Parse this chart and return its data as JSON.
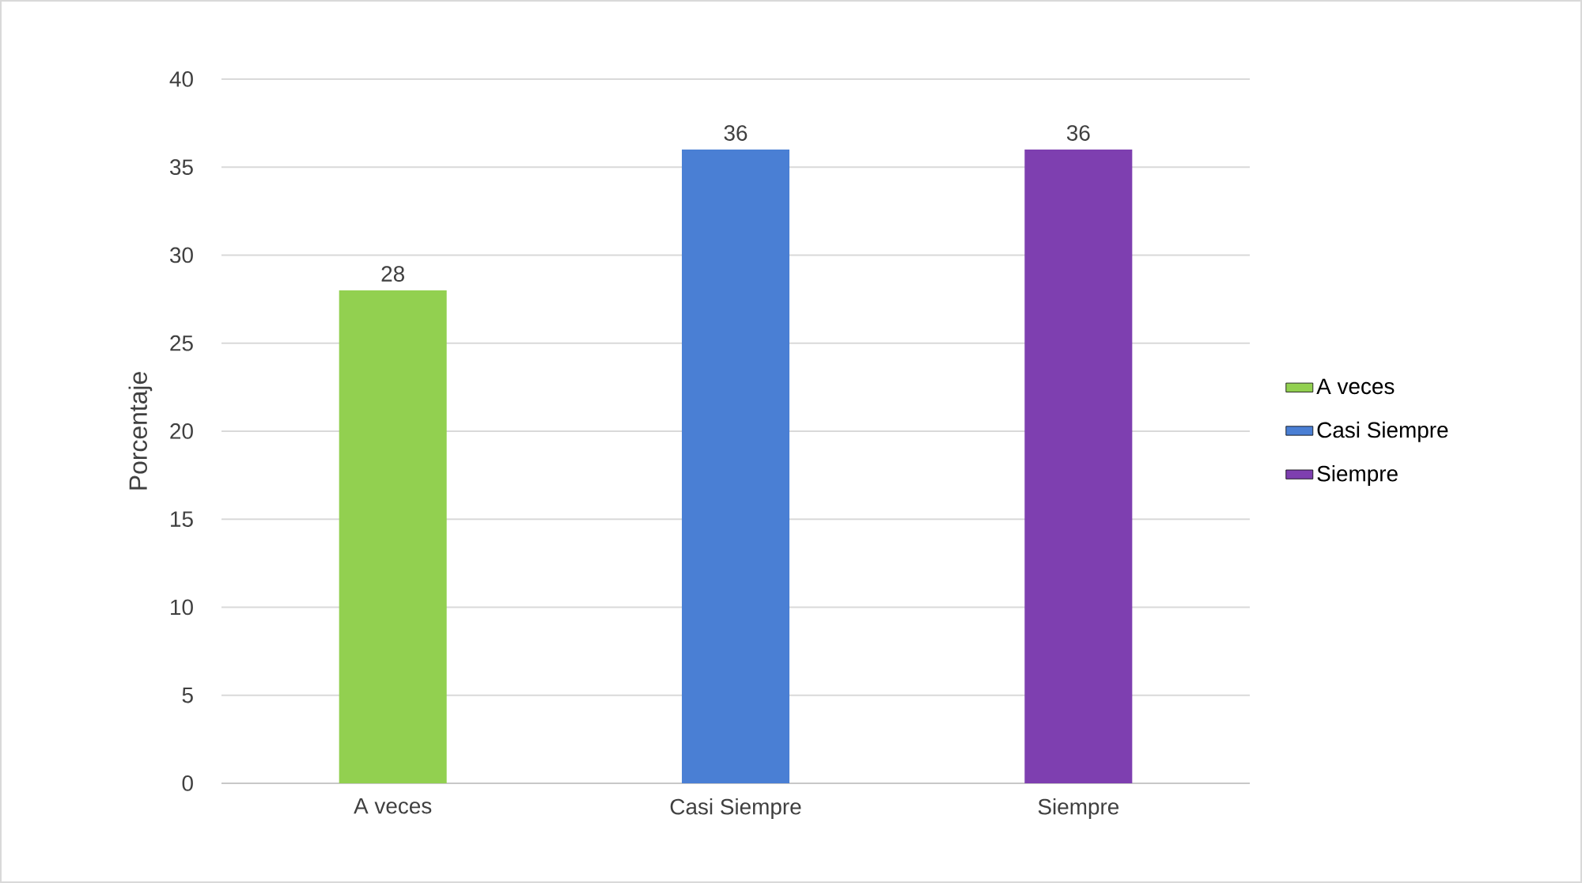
{
  "chart_data": {
    "type": "bar",
    "ylabel": "Porcentaje",
    "categories": [
      "A veces",
      "Casi Siempre",
      "Siempre"
    ],
    "series": [
      {
        "name": "A veces",
        "color": "#92d050",
        "values": [
          28,
          null,
          null
        ]
      },
      {
        "name": "Casi Siempre",
        "color": "#4a7fd4",
        "values": [
          null,
          36,
          null
        ]
      },
      {
        "name": "Siempre",
        "color": "#7e3fb0",
        "values": [
          null,
          null,
          36
        ]
      }
    ],
    "ylim": [
      0,
      40
    ],
    "yticks": [
      0,
      5,
      10,
      15,
      20,
      25,
      30,
      35,
      40
    ],
    "grid": "y",
    "legend": "right",
    "data_labels": true
  }
}
